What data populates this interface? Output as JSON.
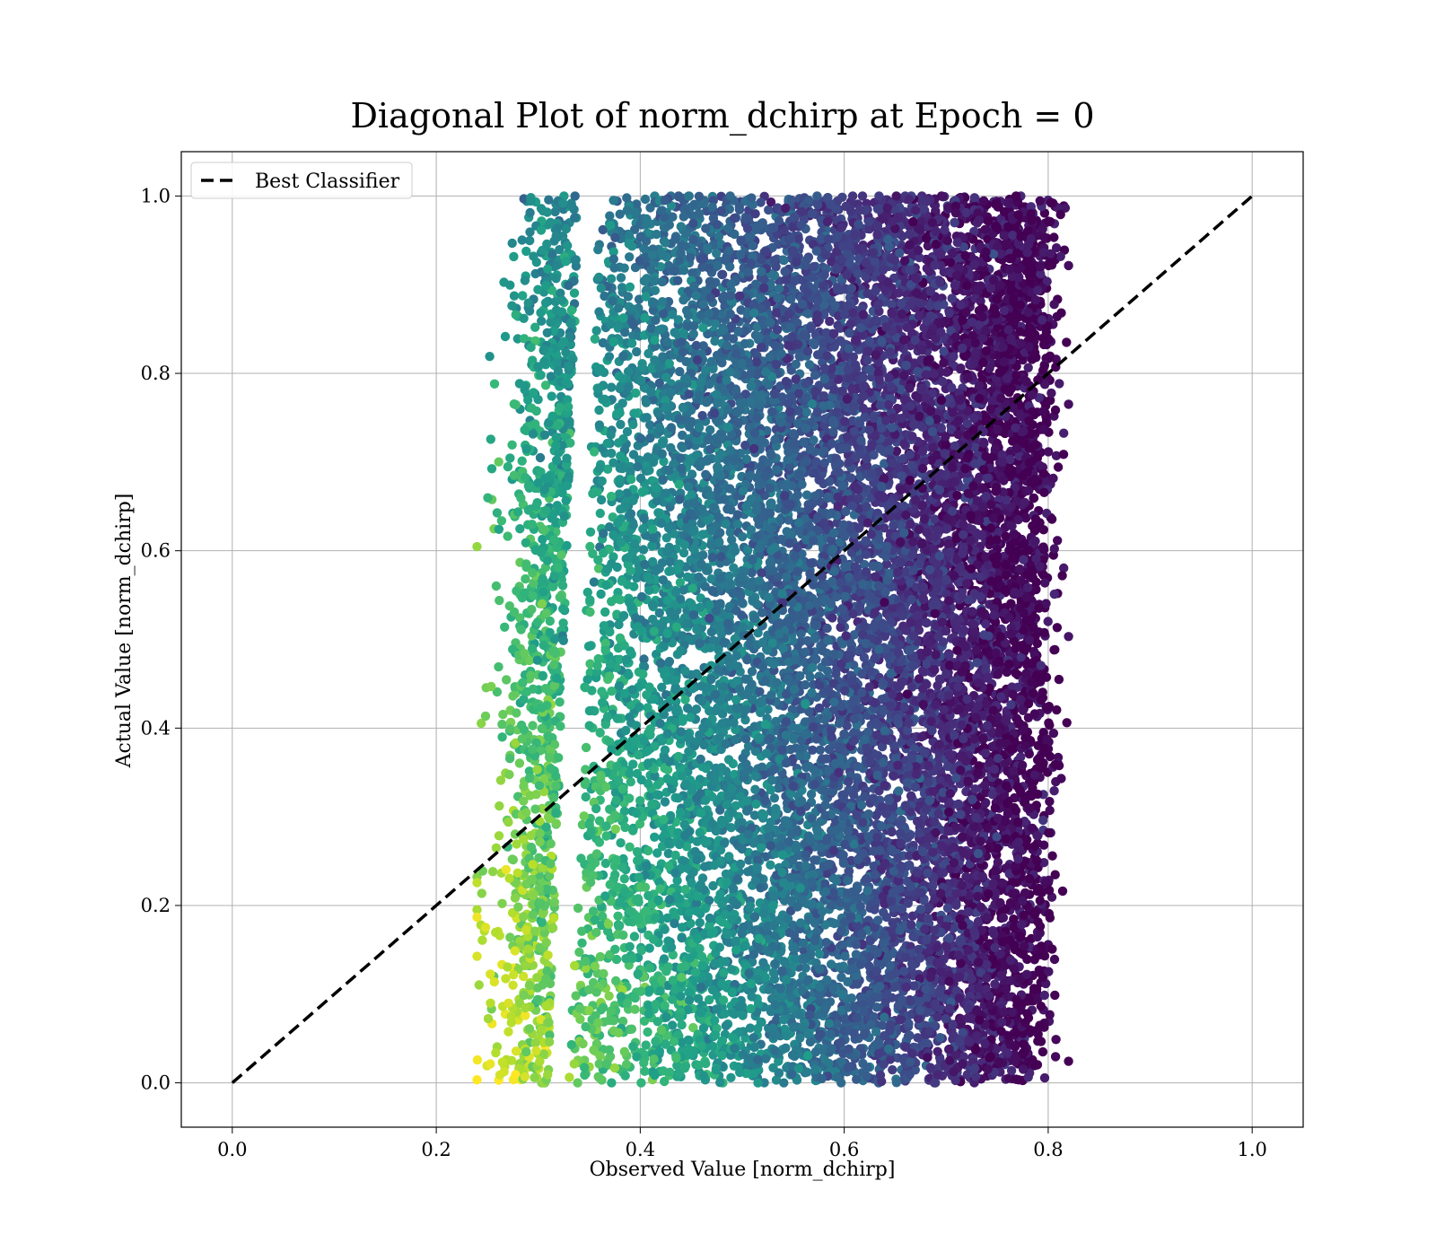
{
  "chart_data": {
    "type": "scatter",
    "title": "Diagonal Plot of norm_dchirp at Epoch = 0",
    "xlabel": "Observed Value [norm_dchirp]",
    "ylabel": "Actual Value [norm_dchirp]",
    "xlim": [
      -0.05,
      1.05
    ],
    "ylim": [
      -0.05,
      1.05
    ],
    "xticks": [
      0.0,
      0.2,
      0.4,
      0.6,
      0.8,
      1.0
    ],
    "xtick_labels": [
      "0.0",
      "0.2",
      "0.4",
      "0.6",
      "0.8",
      "1.0"
    ],
    "yticks": [
      0.0,
      0.2,
      0.4,
      0.6,
      0.8,
      1.0
    ],
    "ytick_labels": [
      "0.0",
      "0.2",
      "0.4",
      "0.6",
      "0.8",
      "1.0"
    ],
    "grid": true,
    "colormap": "viridis",
    "scatter_cloud": {
      "x_range": [
        0.24,
        0.82
      ],
      "y_range": [
        0.0,
        1.0
      ],
      "approx_points": 14000,
      "color_trend": "yellow-green at low observed/low actual, dark purple at high observed/high actual"
    },
    "series": [
      {
        "name": "Best Classifier",
        "kind": "line",
        "style": "dashed",
        "color": "#000000",
        "x": [
          0.0,
          1.0
        ],
        "y": [
          0.0,
          1.0
        ]
      }
    ],
    "legend": {
      "position": "top-left"
    }
  }
}
